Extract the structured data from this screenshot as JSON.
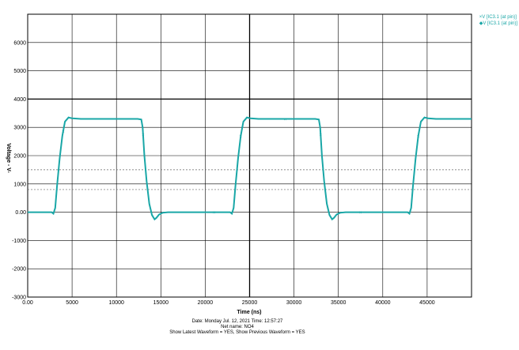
{
  "chart_data": {
    "type": "line",
    "title": "",
    "xlabel": "Time  (ns)",
    "ylabel": "Voltage  -  V-",
    "xlim": [
      0,
      50000
    ],
    "ylim": [
      -3000,
      7000
    ],
    "x_ticks": [
      "0.00",
      "5000",
      "10000",
      "15000",
      "20000",
      "25000",
      "30000",
      "35000",
      "40000",
      "45000"
    ],
    "y_ticks": [
      "6000",
      "5000",
      "4000",
      "3000",
      "2000",
      "1000",
      "0.00",
      "-1000",
      "-2000",
      "-3000"
    ],
    "thresholds": [
      1500,
      800
    ],
    "grid": true,
    "series": [
      {
        "name": "V [IC3.1 (at pin)]",
        "color": "#1aa7a7",
        "x": [
          0,
          2700,
          2900,
          3100,
          3300,
          3600,
          3900,
          4200,
          4600,
          5000,
          6000,
          8000,
          10000,
          12400,
          12800,
          12950,
          13150,
          13400,
          13700,
          14000,
          14300,
          14500,
          14800,
          15200,
          15800,
          16200,
          18000,
          20000,
          22800,
          23000,
          23200,
          23400,
          23700,
          24000,
          24300,
          24700,
          25100,
          26000,
          28000,
          30000,
          32400,
          32800,
          32950,
          33150,
          33400,
          33700,
          34000,
          34300,
          34500,
          34800,
          35200,
          35800,
          36200,
          38000,
          40000,
          42800,
          43000,
          43200,
          43400,
          43700,
          44000,
          44300,
          44700,
          45100,
          46000,
          48000,
          50000
        ],
        "y": [
          0,
          0,
          -50,
          150,
          900,
          1900,
          2700,
          3200,
          3350,
          3320,
          3300,
          3300,
          3300,
          3300,
          3280,
          3000,
          2000,
          1100,
          300,
          -100,
          -250,
          -200,
          -80,
          -20,
          0,
          0,
          0,
          0,
          0,
          -50,
          150,
          900,
          1900,
          2700,
          3200,
          3350,
          3320,
          3300,
          3300,
          3300,
          3300,
          3280,
          3000,
          2000,
          1100,
          300,
          -100,
          -250,
          -200,
          -80,
          -20,
          0,
          0,
          0,
          0,
          0,
          -50,
          150,
          900,
          1900,
          2700,
          3200,
          3350,
          3320,
          3300,
          3300,
          3300
        ]
      },
      {
        "name": "V [IC3.1 (at pin)]",
        "color": "#1aa7a7",
        "x": [
          0,
          2700,
          2900,
          3100,
          3300,
          3600,
          3900,
          4200,
          4600,
          5000,
          6000,
          8000,
          10000,
          12400,
          12800,
          12950,
          13150,
          13400,
          13700,
          14000,
          14300,
          14500,
          14800,
          15200,
          15800,
          16200,
          18000,
          20000,
          22800,
          23000,
          23200,
          23400,
          23700,
          24000,
          24300,
          24700,
          25100,
          26000,
          28000,
          30000,
          32400,
          32800,
          32950,
          33150,
          33400,
          33700,
          34000,
          34300,
          34500,
          34800,
          35200,
          35800,
          36200,
          38000,
          40000,
          42800,
          43000,
          43200,
          43400,
          43700,
          44000,
          44300,
          44700,
          45100,
          46000,
          48000,
          50000
        ],
        "y": [
          0,
          0,
          -40,
          160,
          920,
          1920,
          2720,
          3210,
          3360,
          3320,
          3300,
          3300,
          3300,
          3300,
          3280,
          2990,
          1990,
          1090,
          290,
          -110,
          -240,
          -190,
          -70,
          -15,
          0,
          0,
          0,
          0,
          0,
          -40,
          160,
          920,
          1920,
          2720,
          3210,
          3360,
          3320,
          3300,
          3300,
          3300,
          3300,
          3280,
          2990,
          1990,
          1090,
          290,
          -110,
          -240,
          -190,
          -70,
          -15,
          0,
          0,
          0,
          0,
          0,
          -40,
          160,
          920,
          1920,
          2720,
          3210,
          3360,
          3320,
          3300,
          3300,
          3300
        ]
      }
    ]
  },
  "legend": [
    {
      "marker": "×",
      "text": "V [IC3.1 (at pin)]"
    },
    {
      "marker": "◆",
      "text": "V [IC3.1 (at pin)]"
    }
  ],
  "footer": {
    "line1": "Date: Monday Jul. 12, 2021   Time: 12:57:27",
    "line2": "Net name: NO4",
    "line3": "Show Latest Waveform = YES,   Show Previous Waveform = YES"
  },
  "colors": {
    "grid": "#000000",
    "dotted": "#666666",
    "trace": "#1aa7a7"
  }
}
